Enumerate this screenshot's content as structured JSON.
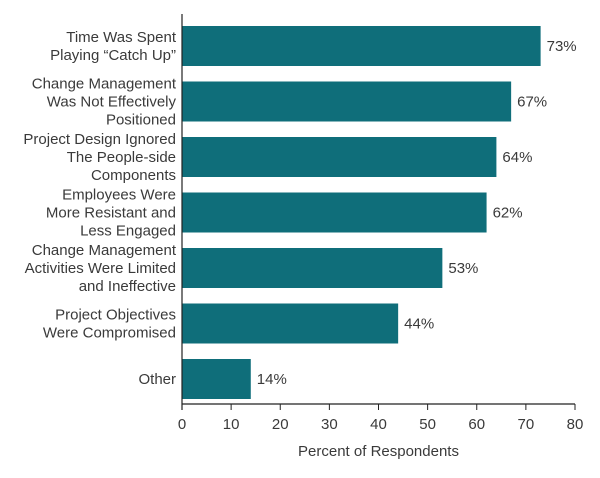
{
  "chart_data": {
    "type": "bar",
    "orientation": "horizontal",
    "categories": [
      [
        "Time Was Spent",
        "Playing “Catch Up”"
      ],
      [
        "Change Management",
        "Was Not Effectively",
        "Positioned"
      ],
      [
        "Project Design Ignored",
        "The People-side",
        "Components"
      ],
      [
        "Employees Were",
        "More Resistant and",
        "Less Engaged"
      ],
      [
        "Change Management",
        "Activities Were Limited",
        "and Ineffective"
      ],
      [
        "Project Objectives",
        "Were Compromised"
      ],
      [
        "Other"
      ]
    ],
    "values": [
      73,
      67,
      64,
      62,
      53,
      44,
      14
    ],
    "value_labels": [
      "73%",
      "67%",
      "64%",
      "62%",
      "53%",
      "44%",
      "14%"
    ],
    "xlabel": "Percent of Respondents",
    "ylabel": "",
    "title": "",
    "xlim": [
      0,
      80
    ],
    "xticks": [
      0,
      10,
      20,
      30,
      40,
      50,
      60,
      70,
      80
    ],
    "bar_color": "#0f6e7a",
    "grid": false,
    "legend": "none"
  }
}
